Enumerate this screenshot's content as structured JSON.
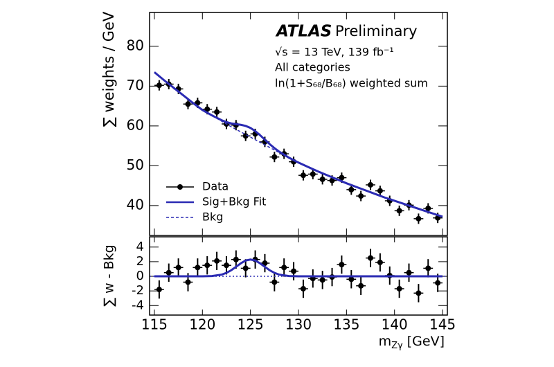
{
  "chart_data": [
    {
      "type": "line",
      "experiment": "ATLAS",
      "status": "Preliminary",
      "annotations": [
        "√s = 13 TeV, 139 fb⁻¹",
        "All categories",
        "ln(1+S₆₈/B₆₈) weighted sum"
      ],
      "y_label": "∑ weights / GeV",
      "xlim": [
        114.5,
        145.5
      ],
      "xticks": [
        115,
        120,
        125,
        130,
        135,
        140,
        145
      ],
      "xtick_labels": false,
      "ylim": [
        32.5,
        88.5
      ],
      "yticks": [
        40,
        50,
        60,
        70,
        80
      ],
      "legend": "lower left",
      "series": [
        {
          "name": "Data",
          "style": "points",
          "color": "#000000",
          "xerr": 0.5,
          "x": [
            115.5,
            116.5,
            117.5,
            118.5,
            119.5,
            120.5,
            121.5,
            122.5,
            123.5,
            124.5,
            125.5,
            126.5,
            127.5,
            128.5,
            129.5,
            130.5,
            131.5,
            132.5,
            133.5,
            134.5,
            135.5,
            136.5,
            137.5,
            138.5,
            139.5,
            140.5,
            141.5,
            142.5,
            143.5,
            144.5
          ],
          "values": [
            70.2,
            70.5,
            69.3,
            65.5,
            65.8,
            64.2,
            63.5,
            60.5,
            60.2,
            57.5,
            58,
            56,
            52.2,
            53,
            51,
            47.6,
            47.9,
            46.6,
            46.3,
            47,
            44,
            42.4,
            45.2,
            43.7,
            41.2,
            38.7,
            40.1,
            36.7,
            39.3,
            36.9
          ],
          "errors": [
            1.3,
            1.3,
            1.3,
            1.3,
            1.3,
            1.3,
            1.3,
            1.3,
            1.3,
            1.3,
            1.3,
            1.3,
            1.3,
            1.3,
            1.3,
            1.3,
            1.3,
            1.3,
            1.3,
            1.3,
            1.3,
            1.3,
            1.3,
            1.3,
            1.3,
            1.3,
            1.3,
            1.3,
            1.3,
            1.3
          ]
        },
        {
          "name": "Sig+Bkg Fit",
          "style": "solid",
          "color": "#2b2bb3",
          "x": [
            115,
            116,
            117,
            118,
            119,
            120,
            121,
            122,
            122.5,
            123,
            123.5,
            124,
            124.5,
            125,
            125.5,
            126,
            126.5,
            127,
            127.5,
            128,
            129,
            130,
            131,
            132,
            133,
            134,
            135,
            136,
            137,
            138,
            139,
            140,
            141,
            142,
            143,
            144,
            145
          ],
          "values": [
            73.5,
            71.5,
            69.6,
            67.7,
            65.8,
            64.0,
            62.64,
            61.43,
            60.97,
            60.63,
            60.45,
            60.28,
            60.01,
            59.5,
            58.71,
            57.68,
            56.55,
            55.43,
            54.42,
            53.53,
            52.04,
            50.8,
            49.7,
            48.6,
            47.6,
            46.6,
            45.6,
            44.7,
            43.8,
            42.9,
            42.0,
            41.2,
            40.4,
            39.6,
            38.8,
            38.0,
            37.2
          ]
        },
        {
          "name": "Bkg",
          "style": "dashed",
          "color": "#2b2bb3",
          "x": [
            115,
            116,
            117,
            118,
            119,
            120,
            121,
            122,
            122.5,
            123,
            123.5,
            124,
            124.5,
            125,
            125.5,
            126,
            126.5,
            127,
            127.5,
            128,
            129,
            130,
            131,
            132,
            133,
            134,
            135,
            136,
            137,
            138,
            139,
            140,
            141,
            142,
            143,
            144,
            145
          ],
          "values": [
            73.5,
            71.5,
            69.6,
            67.7,
            65.8,
            64.0,
            62.6,
            61.2,
            60.5,
            59.8,
            59.15,
            58.5,
            57.85,
            57.2,
            56.55,
            55.9,
            55.25,
            54.6,
            53.95,
            53.3,
            52.0,
            50.8,
            49.7,
            48.6,
            47.6,
            46.6,
            45.6,
            44.7,
            43.8,
            42.9,
            42.0,
            41.2,
            40.4,
            39.6,
            38.8,
            38.0,
            37.2
          ]
        }
      ]
    },
    {
      "type": "line",
      "y_label": "∑ w - Bkg",
      "x_label_parts": [
        "m",
        "Zγ",
        "[GeV]"
      ],
      "xlim": [
        114.5,
        145.5
      ],
      "xticks": [
        115,
        120,
        125,
        130,
        135,
        140,
        145
      ],
      "xtick_labels": true,
      "ylim": [
        -5.3,
        5.4
      ],
      "yticks": [
        -4,
        -2,
        0,
        2,
        4
      ],
      "series": [
        {
          "style": "points",
          "color": "#000000",
          "xerr": 0.5,
          "x": [
            115.5,
            116.5,
            117.5,
            118.5,
            119.5,
            120.5,
            121.5,
            122.5,
            123.5,
            124.5,
            125.5,
            126.5,
            127.5,
            128.5,
            129.5,
            130.5,
            131.5,
            132.5,
            133.5,
            134.5,
            135.5,
            136.5,
            137.5,
            138.5,
            139.5,
            140.5,
            141.5,
            142.5,
            143.5,
            144.5
          ],
          "values": [
            -1.8,
            0.5,
            1.2,
            -0.8,
            1.2,
            1.5,
            2.1,
            1.5,
            2.3,
            1.1,
            2.3,
            1.8,
            -0.8,
            1.2,
            0.7,
            -1.7,
            -0.3,
            -0.5,
            -0.1,
            1.6,
            -0.4,
            -1.3,
            2.5,
            1.9,
            0.1,
            -1.7,
            0.5,
            -2.3,
            1.1,
            -0.9
          ],
          "errors": [
            1.25,
            1.25,
            1.25,
            1.25,
            1.25,
            1.25,
            1.25,
            1.25,
            1.25,
            1.25,
            1.25,
            1.25,
            1.25,
            1.25,
            1.25,
            1.25,
            1.25,
            1.25,
            1.25,
            1.25,
            1.25,
            1.25,
            1.25,
            1.25,
            1.25,
            1.25,
            1.25,
            1.25,
            1.25,
            1.25
          ]
        },
        {
          "style": "dashed",
          "color": "#2b2bb3",
          "x": [
            114.5,
            145.5
          ],
          "values": [
            0,
            0
          ]
        },
        {
          "style": "solid",
          "color": "#2b2bb3",
          "x": [
            115,
            116,
            117,
            118,
            119,
            120,
            121,
            122,
            122.5,
            123,
            123.5,
            124,
            124.5,
            125,
            125.5,
            126,
            126.5,
            127,
            127.5,
            128,
            129,
            130,
            131,
            132,
            133,
            134,
            135,
            136,
            137,
            138,
            139,
            140,
            141,
            142,
            143,
            144,
            145
          ],
          "values": [
            0,
            0,
            0,
            0,
            0,
            0,
            0.04,
            0.23,
            0.47,
            0.83,
            1.3,
            1.78,
            2.16,
            2.3,
            2.16,
            1.78,
            1.3,
            0.83,
            0.47,
            0.23,
            0.04,
            0,
            0,
            0,
            0,
            0,
            0,
            0,
            0,
            0,
            0,
            0,
            0,
            0,
            0,
            0,
            0
          ]
        }
      ]
    }
  ]
}
